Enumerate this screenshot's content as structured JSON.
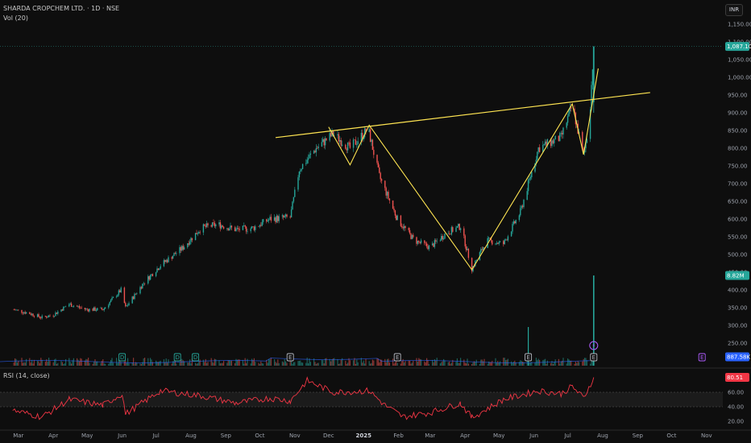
{
  "header": {
    "symbol_line": "SHARDA CROPCHEM LTD. · 1D · NSE",
    "volume_label": "Vol (20)",
    "rsi_label": "RSI (14, close)",
    "currency": "INR"
  },
  "badges": {
    "last_price": "1,087.10",
    "volume_current": "8.82M",
    "volume_ma": "887.58K",
    "rsi_value": "80.51"
  },
  "colors": {
    "background": "#0e0e0e",
    "up": "#26a69a",
    "down": "#ef5350",
    "pattern_line": "#ffe552",
    "rsi_line": "#f23645",
    "volume_ma": "#2962ff",
    "earnings_marker": "#b2b5be",
    "dividend_marker": "#26a69a"
  },
  "chart_data": {
    "type": "candlestick",
    "price_axis": {
      "ticks": [
        "1,150.00",
        "1,100.00",
        "1,050.00",
        "1,000.00",
        "950.00",
        "900.00",
        "850.00",
        "800.00",
        "750.00",
        "700.00",
        "650.00",
        "600.00",
        "550.00",
        "500.00",
        "450.00",
        "400.00",
        "350.00",
        "300.00",
        "250.00"
      ],
      "range": [
        250,
        1150
      ]
    },
    "time_axis": {
      "ticks": [
        "Mar",
        "Apr",
        "May",
        "Jun",
        "Jul",
        "Aug",
        "Sep",
        "Oct",
        "Nov",
        "Dec",
        "2025",
        "Feb",
        "Mar",
        "Apr",
        "May",
        "Jun",
        "Jul",
        "Aug",
        "Sep",
        "Oct",
        "Nov"
      ]
    },
    "price_path": [
      {
        "date": "2024-02-25",
        "close": 345
      },
      {
        "date": "2024-03-10",
        "close": 335
      },
      {
        "date": "2024-03-22",
        "close": 322
      },
      {
        "date": "2024-04-01",
        "close": 330
      },
      {
        "date": "2024-04-15",
        "close": 360
      },
      {
        "date": "2024-04-30",
        "close": 345
      },
      {
        "date": "2024-05-15",
        "close": 345
      },
      {
        "date": "2024-05-31",
        "close": 400
      },
      {
        "date": "2024-06-04",
        "close": 350
      },
      {
        "date": "2024-06-20",
        "close": 420
      },
      {
        "date": "2024-07-05",
        "close": 470
      },
      {
        "date": "2024-07-25",
        "close": 520
      },
      {
        "date": "2024-08-10",
        "close": 575
      },
      {
        "date": "2024-08-25",
        "close": 585
      },
      {
        "date": "2024-09-10",
        "close": 570
      },
      {
        "date": "2024-09-25",
        "close": 575
      },
      {
        "date": "2024-10-10",
        "close": 600
      },
      {
        "date": "2024-10-28",
        "close": 605
      },
      {
        "date": "2024-11-05",
        "close": 740
      },
      {
        "date": "2024-11-20",
        "close": 800
      },
      {
        "date": "2024-12-05",
        "close": 840
      },
      {
        "date": "2024-12-20",
        "close": 800
      },
      {
        "date": "2025-01-05",
        "close": 855
      },
      {
        "date": "2025-01-15",
        "close": 720
      },
      {
        "date": "2025-01-31",
        "close": 600
      },
      {
        "date": "2025-02-15",
        "close": 540
      },
      {
        "date": "2025-03-01",
        "close": 520
      },
      {
        "date": "2025-03-15",
        "close": 560
      },
      {
        "date": "2025-03-28",
        "close": 580
      },
      {
        "date": "2025-04-07",
        "close": 460
      },
      {
        "date": "2025-04-20",
        "close": 540
      },
      {
        "date": "2025-05-05",
        "close": 530
      },
      {
        "date": "2025-05-20",
        "close": 620
      },
      {
        "date": "2025-06-05",
        "close": 800
      },
      {
        "date": "2025-06-25",
        "close": 830
      },
      {
        "date": "2025-07-05",
        "close": 920
      },
      {
        "date": "2025-07-10",
        "close": 850
      },
      {
        "date": "2025-07-15",
        "close": 780
      },
      {
        "date": "2025-07-20",
        "close": 870
      },
      {
        "date": "2025-07-24",
        "close": 1087.1
      }
    ],
    "latest": {
      "close": 1087.1,
      "high": 1087.1
    },
    "pattern_lines": [
      {
        "name": "neckline",
        "from": {
          "date": "2024-10-15",
          "price": 830
        },
        "to": {
          "date": "2025-09-12",
          "price": 957
        }
      },
      {
        "name": "zigzag",
        "points": [
          {
            "date": "2024-12-01",
            "price": 860
          },
          {
            "date": "2024-12-20",
            "price": 753
          },
          {
            "date": "2025-01-06",
            "price": 865
          },
          {
            "date": "2025-04-07",
            "price": 457
          },
          {
            "date": "2025-07-05",
            "price": 925
          },
          {
            "date": "2025-07-15",
            "price": 782
          },
          {
            "date": "2025-07-28",
            "price": 1025
          }
        ]
      }
    ],
    "volume": {
      "current": "8.82M",
      "ma20": "887.58K",
      "spikes": [
        {
          "date": "2025-05-27",
          "value": "large"
        },
        {
          "date": "2025-07-24",
          "value": "8.82M"
        }
      ]
    },
    "rsi": {
      "period": 14,
      "source": "close",
      "value": 80.51,
      "ticks": [
        "60.00",
        "40.00",
        "20.00"
      ],
      "range": [
        10,
        90
      ],
      "bands": [
        40,
        60
      ],
      "path": [
        {
          "date": "2024-02-25",
          "value": 35
        },
        {
          "date": "2024-03-22",
          "value": 26
        },
        {
          "date": "2024-04-15",
          "value": 50
        },
        {
          "date": "2024-05-15",
          "value": 42
        },
        {
          "date": "2024-06-01",
          "value": 58
        },
        {
          "date": "2024-06-04",
          "value": 30
        },
        {
          "date": "2024-07-05",
          "value": 62
        },
        {
          "date": "2024-08-10",
          "value": 55
        },
        {
          "date": "2024-09-10",
          "value": 45
        },
        {
          "date": "2024-10-10",
          "value": 52
        },
        {
          "date": "2024-10-28",
          "value": 48
        },
        {
          "date": "2024-11-12",
          "value": 76
        },
        {
          "date": "2024-12-05",
          "value": 60
        },
        {
          "date": "2025-01-06",
          "value": 62
        },
        {
          "date": "2025-01-20",
          "value": 42
        },
        {
          "date": "2025-02-05",
          "value": 26
        },
        {
          "date": "2025-03-01",
          "value": 32
        },
        {
          "date": "2025-03-28",
          "value": 45
        },
        {
          "date": "2025-04-07",
          "value": 25
        },
        {
          "date": "2025-05-05",
          "value": 50
        },
        {
          "date": "2025-06-05",
          "value": 62
        },
        {
          "date": "2025-06-25",
          "value": 58
        },
        {
          "date": "2025-07-05",
          "value": 68
        },
        {
          "date": "2025-07-15",
          "value": 52
        },
        {
          "date": "2025-07-24",
          "value": 80.51
        }
      ]
    },
    "event_markers": [
      {
        "type": "dividend",
        "label": "D",
        "date": "2024-06-01"
      },
      {
        "type": "dividend",
        "label": "D",
        "date": "2024-07-20"
      },
      {
        "type": "dividend",
        "label": "D",
        "date": "2024-08-05"
      },
      {
        "type": "earnings",
        "label": "E",
        "date": "2024-10-28"
      },
      {
        "type": "earnings",
        "label": "E",
        "date": "2025-01-31"
      },
      {
        "type": "earnings",
        "label": "E",
        "date": "2025-05-27"
      },
      {
        "type": "earnings",
        "label": "E",
        "date": "2025-07-24"
      },
      {
        "type": "earnings",
        "label": "E",
        "date": "2025-10-28"
      },
      {
        "type": "split",
        "label": "⚡",
        "date": "2025-07-24"
      }
    ]
  }
}
